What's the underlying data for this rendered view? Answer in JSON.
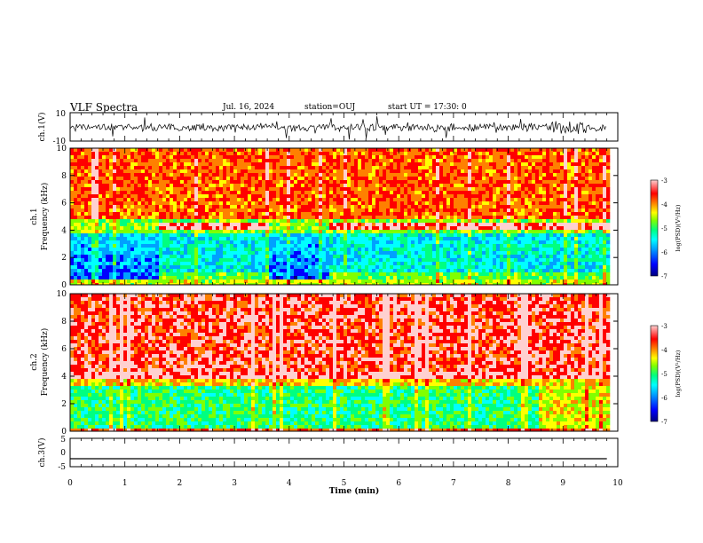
{
  "header": {
    "title": "VLF Spectra",
    "date": "Jul. 16, 2024",
    "station": "station=OUJ",
    "start": "start UT =  17:30: 0"
  },
  "chart_data": [
    {
      "type": "line",
      "panel": "ch1-waveform",
      "ylabel": "ch.1(V)",
      "yticks": [
        "10",
        "-10"
      ],
      "ylim": [
        -10,
        10
      ],
      "xlim": [
        0,
        10
      ],
      "x_data_max": 9.8
    },
    {
      "type": "heatmap",
      "panel": "ch1-spectrogram",
      "ylabel": "ch.1\nFrequency (kHz)",
      "ylabel_line1": "ch.1",
      "ylabel_line2": "Frequency (kHz)",
      "yticks": [
        "0",
        "2",
        "4",
        "6",
        "8",
        "10"
      ],
      "ylim": [
        0,
        10
      ],
      "xlim": [
        0,
        10
      ],
      "colorbar": {
        "label": "log(PSD)(V²/Hz)",
        "ticks": [
          "-3",
          "-4",
          "-5",
          "-6",
          "-7"
        ],
        "range": [
          -7,
          -3
        ]
      }
    },
    {
      "type": "heatmap",
      "panel": "ch2-spectrogram",
      "ylabel": "ch.2\nFrequency (kHz)",
      "ylabel_line1": "ch.2",
      "ylabel_line2": "Frequency (kHz)",
      "yticks": [
        "0",
        "2",
        "4",
        "6",
        "8",
        "10"
      ],
      "ylim": [
        0,
        10
      ],
      "xlim": [
        0,
        10
      ],
      "colorbar": {
        "label": "log(PSD)(V²/Hz)",
        "ticks": [
          "-3",
          "-4",
          "-5",
          "-6",
          "-7"
        ],
        "range": [
          -7,
          -3
        ]
      }
    },
    {
      "type": "line",
      "panel": "ch3-waveform",
      "ylabel": "ch.3(V)",
      "yticks": [
        "5",
        "0",
        "-5"
      ],
      "ylim": [
        -5,
        5
      ],
      "constant_value": -2.2,
      "xlim": [
        0,
        10
      ],
      "xlabel": "Time (min)",
      "xticks": [
        "0",
        "1",
        "2",
        "3",
        "4",
        "5",
        "6",
        "7",
        "8",
        "9",
        "10"
      ]
    }
  ],
  "colors": {
    "colormap": [
      "#000080",
      "#0000ff",
      "#00a0ff",
      "#00ffff",
      "#00ff80",
      "#80ff00",
      "#ffff00",
      "#ff8000",
      "#ff0000",
      "#ffd0d0"
    ],
    "axis": "#000000",
    "background": "#ffffff"
  }
}
